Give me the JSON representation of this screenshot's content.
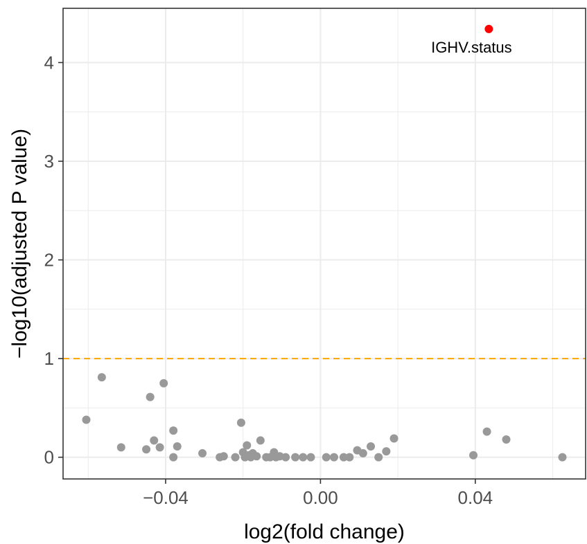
{
  "chart_data": {
    "type": "scatter",
    "title": "",
    "xlabel": "log2(fold change)",
    "ylabel": "−log10(adjusted P value)",
    "xlim": [
      -0.0665,
      0.0685
    ],
    "ylim": [
      -0.22,
      4.55
    ],
    "x_ticks": [
      -0.04,
      0.0,
      0.04
    ],
    "x_tick_labels": [
      "−0.04",
      "0.00",
      "0.04"
    ],
    "y_ticks": [
      0,
      1,
      2,
      3,
      4
    ],
    "y_tick_labels": [
      "0",
      "1",
      "2",
      "3",
      "4"
    ],
    "x_minor_ticks": [
      -0.06,
      -0.02,
      0.02,
      0.06
    ],
    "y_minor_ticks": [
      0.5,
      1.5,
      2.5,
      3.5
    ],
    "grid": true,
    "threshold": {
      "y": 1,
      "color": "#FFA500",
      "style": "dashed"
    },
    "colors": {
      "point": "#999999",
      "highlight": "#FF0000",
      "grid": "#EBEBEB",
      "panel_border": "#333333"
    },
    "highlight_points": [
      {
        "x": 0.0435,
        "y": 4.34,
        "label": "IGHV.status"
      }
    ],
    "points": [
      {
        "x": -0.0605,
        "y": 0.38
      },
      {
        "x": -0.0565,
        "y": 0.81
      },
      {
        "x": -0.0515,
        "y": 0.1
      },
      {
        "x": -0.045,
        "y": 0.08
      },
      {
        "x": -0.044,
        "y": 0.61
      },
      {
        "x": -0.043,
        "y": 0.17
      },
      {
        "x": -0.0415,
        "y": 0.1
      },
      {
        "x": -0.0405,
        "y": 0.75
      },
      {
        "x": -0.038,
        "y": 0.27
      },
      {
        "x": -0.038,
        "y": 0.0
      },
      {
        "x": -0.037,
        "y": 0.11
      },
      {
        "x": -0.0305,
        "y": 0.04
      },
      {
        "x": -0.026,
        "y": 0.0
      },
      {
        "x": -0.025,
        "y": 0.01
      },
      {
        "x": -0.022,
        "y": 0.0
      },
      {
        "x": -0.0205,
        "y": 0.35
      },
      {
        "x": -0.02,
        "y": 0.05
      },
      {
        "x": -0.0195,
        "y": 0.0
      },
      {
        "x": -0.019,
        "y": 0.12
      },
      {
        "x": -0.0185,
        "y": 0.02
      },
      {
        "x": -0.018,
        "y": 0.0
      },
      {
        "x": -0.0175,
        "y": 0.04
      },
      {
        "x": -0.0165,
        "y": 0.01
      },
      {
        "x": -0.0155,
        "y": 0.17
      },
      {
        "x": -0.014,
        "y": 0.0
      },
      {
        "x": -0.013,
        "y": 0.0
      },
      {
        "x": -0.012,
        "y": 0.05
      },
      {
        "x": -0.0115,
        "y": 0.0
      },
      {
        "x": -0.0105,
        "y": 0.01
      },
      {
        "x": -0.009,
        "y": 0.0
      },
      {
        "x": -0.0065,
        "y": 0.0
      },
      {
        "x": -0.0045,
        "y": 0.0
      },
      {
        "x": -0.0025,
        "y": 0.0
      },
      {
        "x": 0.0015,
        "y": 0.0
      },
      {
        "x": 0.0035,
        "y": 0.0
      },
      {
        "x": 0.006,
        "y": 0.0
      },
      {
        "x": 0.0075,
        "y": 0.0
      },
      {
        "x": 0.0095,
        "y": 0.07
      },
      {
        "x": 0.011,
        "y": 0.04
      },
      {
        "x": 0.013,
        "y": 0.11
      },
      {
        "x": 0.015,
        "y": 0.0
      },
      {
        "x": 0.017,
        "y": 0.06
      },
      {
        "x": 0.019,
        "y": 0.19
      },
      {
        "x": 0.0395,
        "y": 0.02
      },
      {
        "x": 0.043,
        "y": 0.26
      },
      {
        "x": 0.048,
        "y": 0.18
      },
      {
        "x": 0.0625,
        "y": 0.0
      }
    ]
  }
}
